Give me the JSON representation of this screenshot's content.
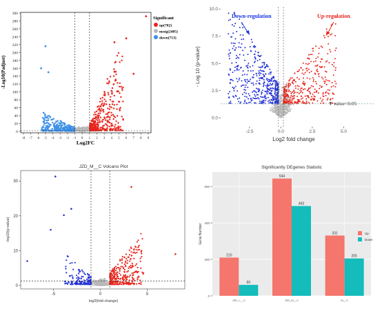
{
  "colors": {
    "up": "#e8251c",
    "down": "#3b8fe6",
    "nosig": "#b8b8b8",
    "down_blue": "#2432d6",
    "bar_up": "#f4766d",
    "bar_down": "#14bcbc",
    "threshold_line": "#555555",
    "pvalue_line": "#8fb8b2",
    "label_blue": "#1a35e0",
    "label_red": "#e8251c"
  },
  "panels": {
    "a": {
      "ylabel": "-Log10(Padjust)",
      "xlabel": "Log2FC",
      "xticks": [
        "-8",
        "-7",
        "-6",
        "-5",
        "-4",
        "-3",
        "-2",
        "-1",
        "0",
        "1",
        "2",
        "3",
        "4",
        "5",
        "6",
        "7",
        "8",
        "9"
      ],
      "yticks": [
        "0",
        "20",
        "40",
        "60",
        "80",
        "100",
        "120",
        "140",
        "160",
        "180",
        "200",
        "220",
        "240",
        "260",
        "280",
        "300"
      ],
      "legend": {
        "title": "Significant",
        "items": [
          "up(782)",
          "nosig(2405)",
          "down(713)"
        ]
      }
    },
    "b": {
      "ylabel": "- Log 10 (p-value)",
      "xlabel": "Log2 fold change",
      "xticks": [
        "-2.5",
        "0.0",
        "2.5",
        "5.0"
      ],
      "yticks": [
        "0.0",
        "2.5",
        "5.0",
        "7.5",
        "10.0"
      ],
      "down_label": "Down-regulation",
      "up_label": "Up-regulation",
      "pvalue_label": "P value=0.05"
    },
    "c": {
      "title": "JZD_M__C Volcano Plot",
      "ylabel": "-log10(p-value)",
      "xlabel": "log2(fold change)",
      "xticks": [
        "-5",
        "0",
        "5"
      ],
      "yticks": [
        "0",
        "10",
        "20",
        "30"
      ]
    },
    "d": {
      "title": "Significantly DEgenes Statistic",
      "ylabel": "Gene Number",
      "yticks": [
        "0",
        "200",
        "400",
        "600"
      ],
      "legend": [
        "Up",
        "Down"
      ]
    }
  },
  "chart_data": [
    {
      "type": "scatter",
      "title": "",
      "xlabel": "Log2FC",
      "ylabel": "-Log10(Padjust)",
      "xlim": [
        -8,
        9
      ],
      "ylim": [
        0,
        300
      ],
      "thresholds": {
        "log2fc": [
          -1,
          1
        ]
      },
      "series": [
        {
          "name": "up(782)",
          "count": 782
        },
        {
          "name": "nosig(2405)",
          "count": 2405
        },
        {
          "name": "down(713)",
          "count": 713
        }
      ],
      "notable_points": [
        {
          "series": "up(782)",
          "x": 8.7,
          "y": 292
        },
        {
          "series": "up(782)",
          "x": 6.0,
          "y": 236
        },
        {
          "series": "up(782)",
          "x": 4.4,
          "y": 226
        },
        {
          "series": "up(782)",
          "x": 7.0,
          "y": 146
        },
        {
          "series": "down(713)",
          "x": -5.0,
          "y": 216
        },
        {
          "series": "down(713)",
          "x": -5.6,
          "y": 160
        },
        {
          "series": "down(713)",
          "x": -4.6,
          "y": 150
        }
      ]
    },
    {
      "type": "scatter",
      "title": "",
      "xlabel": "Log2 fold change",
      "ylabel": "- Log 10 (p-value)",
      "xlim": [
        -4.8,
        7.5
      ],
      "ylim": [
        -0.8,
        10.2
      ],
      "thresholds": {
        "log2fc": [
          -0.2,
          0.2
        ],
        "neg_log10_p": 1.3
      },
      "series": [
        {
          "name": "Down-regulation"
        },
        {
          "name": "Up-regulation"
        }
      ],
      "annotations": [
        "Down-regulation",
        "Up-regulation",
        "P value=0.05"
      ]
    },
    {
      "type": "scatter",
      "title": "JZD_M__C Volcano Plot",
      "xlabel": "log2(fold change)",
      "ylabel": "-log10(p-value)",
      "xlim": [
        -8.5,
        9
      ],
      "ylim": [
        -1,
        33
      ],
      "thresholds": {
        "log2fc": [
          -1,
          1
        ],
        "neg_log10_p": 1.3
      },
      "notable_points": [
        {
          "x": -4.8,
          "y": 31.3
        },
        {
          "x": -3.1,
          "y": 22.0
        },
        {
          "x": -3.9,
          "y": 20.2
        },
        {
          "x": -5.3,
          "y": 16.0
        },
        {
          "x": 3.3,
          "y": 28.3
        },
        {
          "x": 8.0,
          "y": 9.0
        },
        {
          "x": -7.8,
          "y": 7.0
        }
      ]
    },
    {
      "type": "bar",
      "title": "Significantly DEgenes Statistic",
      "xlabel": "",
      "ylabel": "Gene Number",
      "categories": [
        "JZD_L__C",
        "JZD_M__C",
        "M__C"
      ],
      "ylim": [
        0,
        680
      ],
      "series": [
        {
          "name": "Up",
          "values": [
            210,
            644,
            331
          ]
        },
        {
          "name": "Down",
          "values": [
            60,
            493,
            205
          ]
        }
      ]
    }
  ]
}
